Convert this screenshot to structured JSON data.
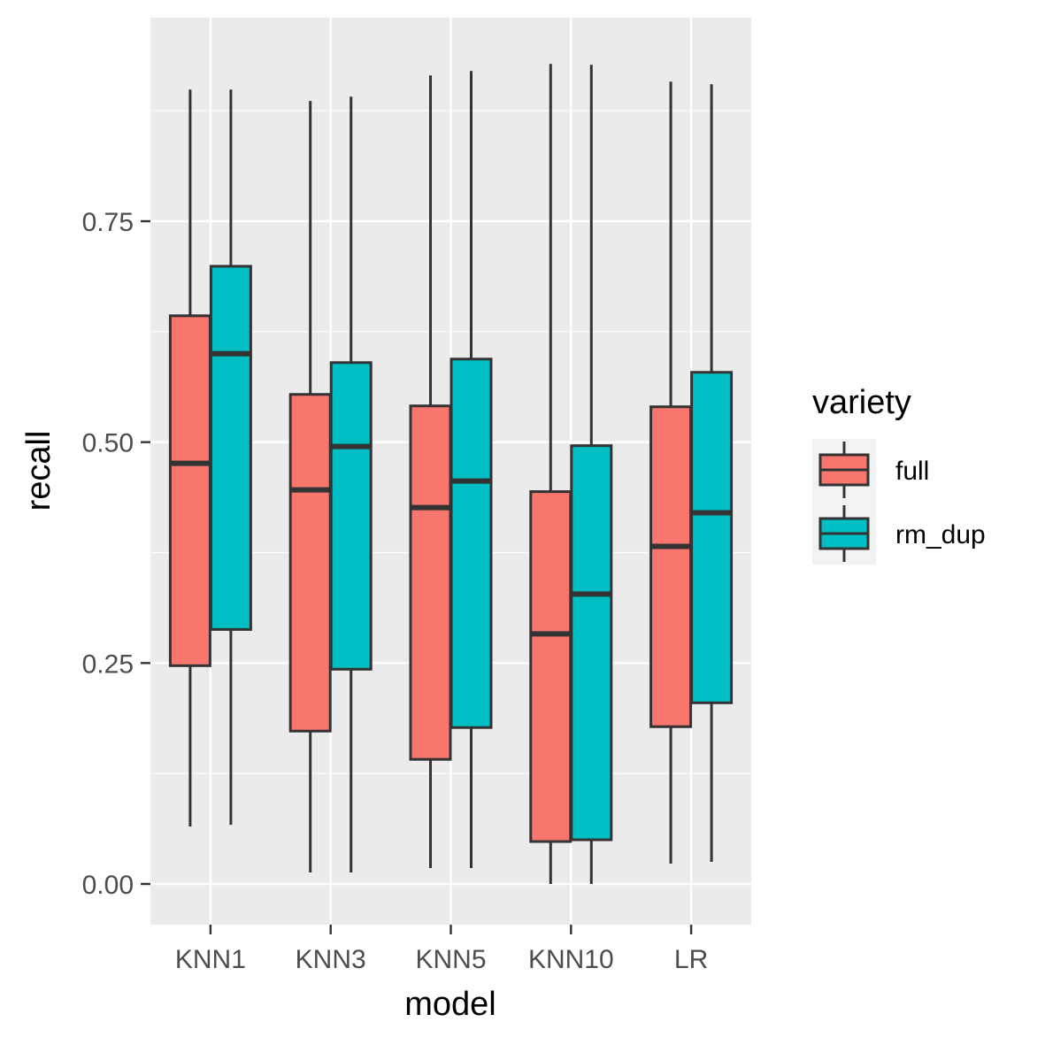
{
  "chart_data": {
    "type": "boxplot",
    "xlabel": "model",
    "ylabel": "recall",
    "categories": [
      "KNN1",
      "KNN3",
      "KNN5",
      "KNN10",
      "LR"
    ],
    "yticks": [
      "0.00",
      "0.25",
      "0.50",
      "0.75"
    ],
    "ytick_values": [
      0,
      0.25,
      0.5,
      0.75
    ],
    "ylim": [
      -0.045,
      0.977
    ],
    "grid": true,
    "legend": {
      "title": "variety",
      "position": "right",
      "entries": [
        "full",
        "rm_dup"
      ]
    },
    "series": [
      {
        "name": "full",
        "color": "#F8766D",
        "boxes": [
          {
            "min": 0.065,
            "q1": 0.247,
            "median": 0.476,
            "q3": 0.643,
            "max": 0.899
          },
          {
            "min": 0.013,
            "q1": 0.173,
            "median": 0.446,
            "q3": 0.554,
            "max": 0.886
          },
          {
            "min": 0.018,
            "q1": 0.141,
            "median": 0.426,
            "q3": 0.541,
            "max": 0.915
          },
          {
            "min": 0.0,
            "q1": 0.048,
            "median": 0.283,
            "q3": 0.444,
            "max": 0.928
          },
          {
            "min": 0.023,
            "q1": 0.178,
            "median": 0.382,
            "q3": 0.54,
            "max": 0.908
          }
        ]
      },
      {
        "name": "rm_dup",
        "color": "#00BFC4",
        "boxes": [
          {
            "min": 0.067,
            "q1": 0.288,
            "median": 0.6,
            "q3": 0.699,
            "max": 0.899
          },
          {
            "min": 0.013,
            "q1": 0.243,
            "median": 0.495,
            "q3": 0.59,
            "max": 0.891
          },
          {
            "min": 0.018,
            "q1": 0.177,
            "median": 0.456,
            "q3": 0.594,
            "max": 0.92
          },
          {
            "min": 0.0,
            "q1": 0.05,
            "median": 0.328,
            "q3": 0.496,
            "max": 0.927
          },
          {
            "min": 0.025,
            "q1": 0.205,
            "median": 0.42,
            "q3": 0.579,
            "max": 0.905
          }
        ]
      }
    ],
    "colors": {
      "panel_background": "#EBEBEB",
      "grid": "#FFFFFF",
      "outline": "#333333",
      "tick_text": "#4D4D4D",
      "legend_key_background": "#F2F2F2"
    }
  }
}
